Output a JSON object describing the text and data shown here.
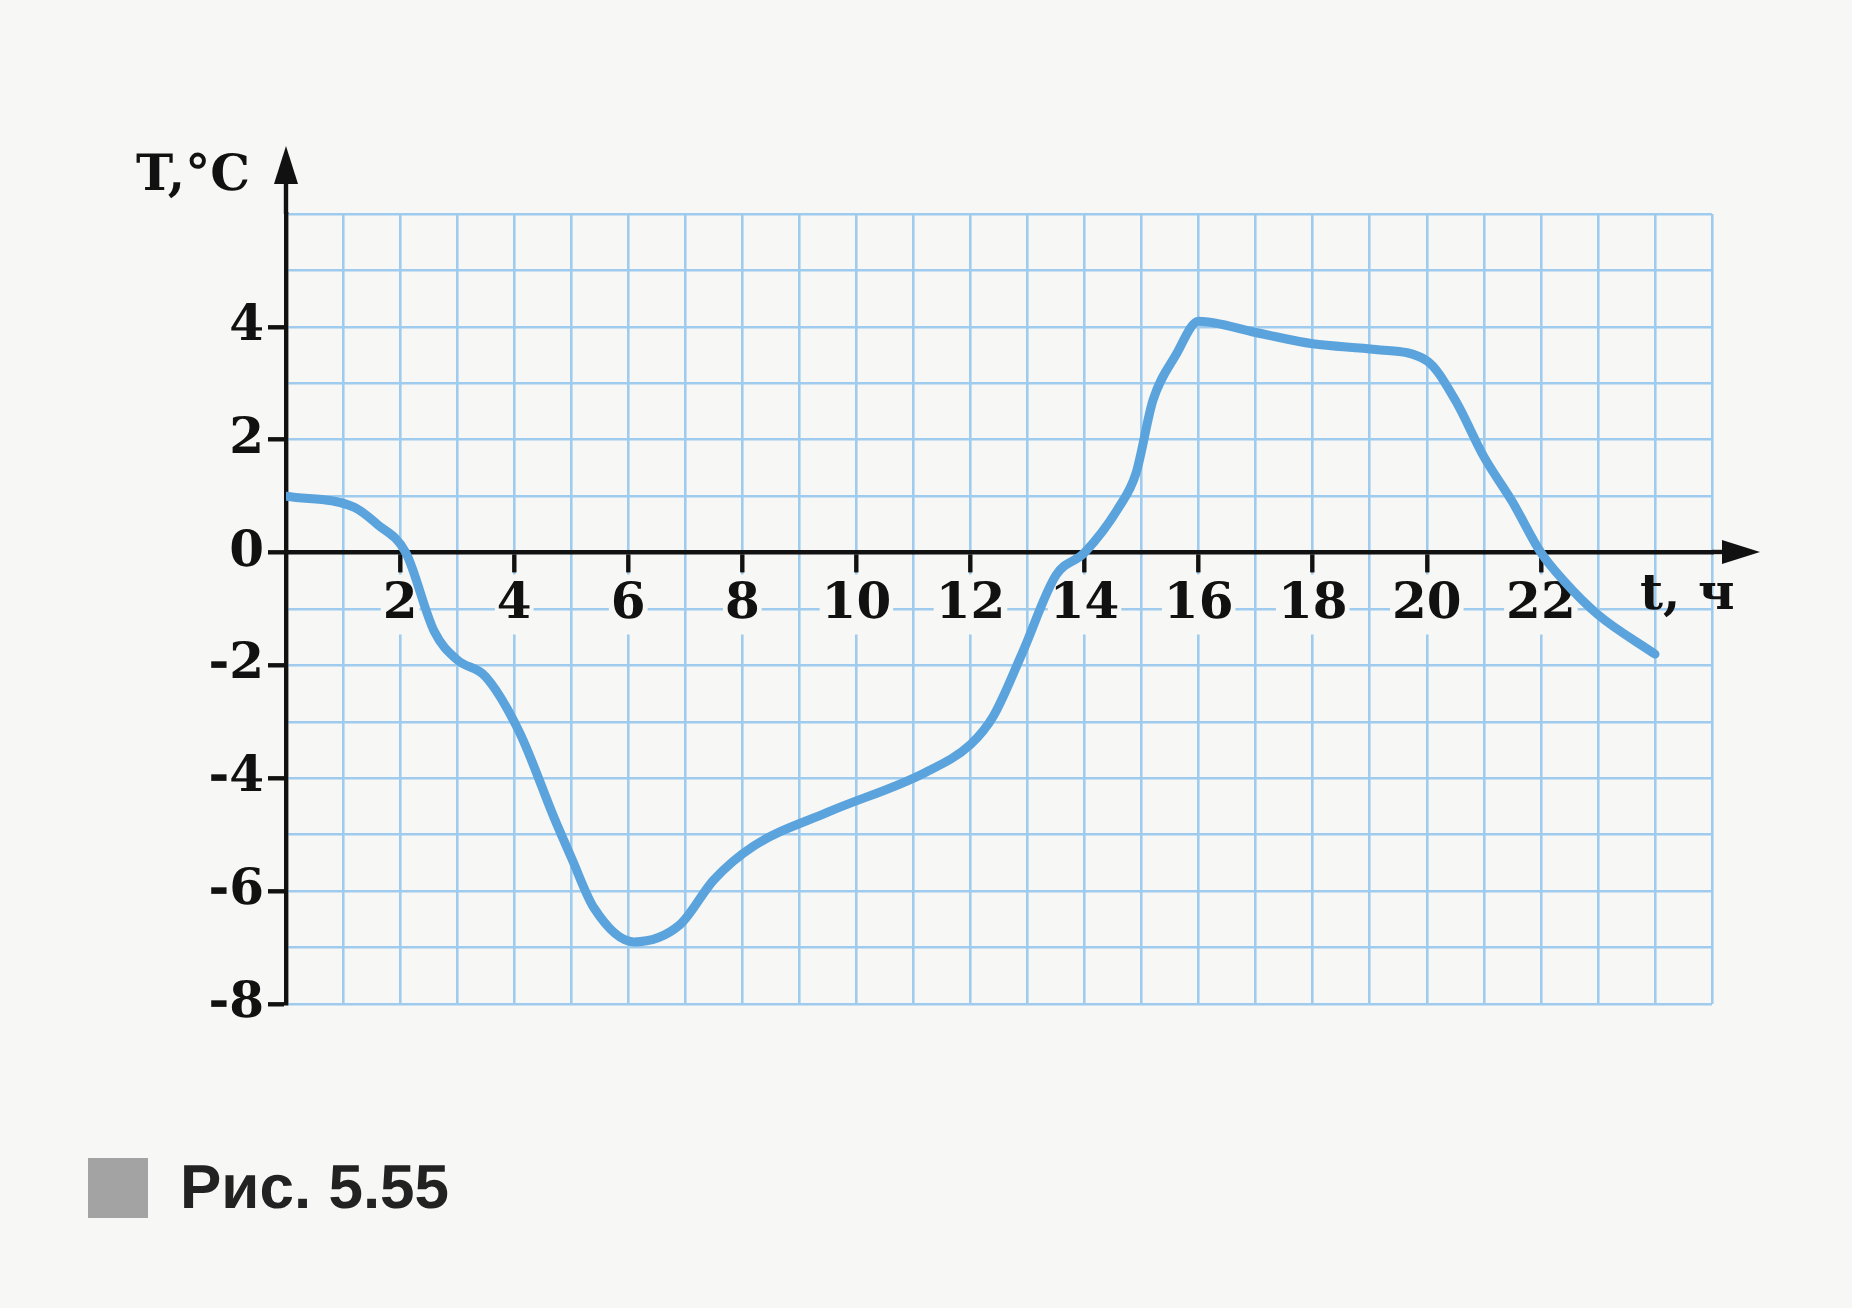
{
  "chart_data": {
    "type": "line",
    "xlabel": "t, ч",
    "ylabel": "T,°C",
    "annotations": [
      "Рис. 5.55"
    ],
    "x": [
      0,
      1.2,
      1.6,
      2.1,
      2.6,
      3,
      3.5,
      4.1,
      4.7,
      5,
      5.4,
      6.1,
      6.9,
      7.5,
      8.2,
      9.5,
      11.2,
      12,
      12.4,
      12.9,
      13.5,
      14,
      14.6,
      14.9,
      15.2,
      15.6,
      16,
      17,
      18,
      19.1,
      20,
      20.5,
      21,
      21.5,
      22,
      22.4,
      23,
      24
    ],
    "series": [
      {
        "color": "#5aa3dc",
        "values": [
          1,
          0.8,
          0.5,
          0,
          -1.4,
          -1.9,
          -2.2,
          -3.2,
          -4.7,
          -5.4,
          -6.3,
          -6.9,
          -6.6,
          -5.8,
          -5.2,
          -4.6,
          -3.9,
          -3.4,
          -2.9,
          -1.8,
          -0.4,
          0,
          0.8,
          1.4,
          2.7,
          3.5,
          4.1,
          3.9,
          3.7,
          3.6,
          3.4,
          2.7,
          1.7,
          0.9,
          0,
          -0.5,
          -1.1,
          -1.8
        ]
      }
    ],
    "xlim": [
      0,
      25
    ],
    "ylim": [
      -8,
      6
    ],
    "xticks": [
      {
        "value": 1,
        "label": null
      },
      2,
      {
        "value": 3,
        "label": null
      },
      4,
      {
        "value": 5,
        "label": null
      },
      6,
      {
        "value": 7,
        "label": null
      },
      8,
      {
        "value": 9,
        "label": null
      },
      10,
      {
        "value": 11,
        "label": null
      },
      12,
      {
        "value": 13,
        "label": null
      },
      14,
      {
        "value": 15,
        "label": null
      },
      16,
      {
        "value": 17,
        "label": null
      },
      18,
      {
        "value": 19,
        "label": null
      },
      20,
      {
        "value": 21,
        "label": null
      },
      22,
      {
        "value": 23,
        "label": null
      },
      {
        "value": 24,
        "label": null
      },
      {
        "value": 25,
        "label": null
      }
    ],
    "yticks": [
      -8,
      {
        "value": -7,
        "label": null
      },
      -6,
      {
        "value": -5,
        "label": null
      },
      -4,
      {
        "value": -3,
        "label": null
      },
      -2,
      {
        "value": -1,
        "label": null
      },
      0,
      {
        "value": 1,
        "label": null
      },
      2,
      {
        "value": 3,
        "label": null
      },
      4,
      {
        "value": 5,
        "label": null
      },
      {
        "value": 6,
        "label": null
      }
    ],
    "grid": true,
    "marker": "none",
    "line_style": "solid"
  }
}
